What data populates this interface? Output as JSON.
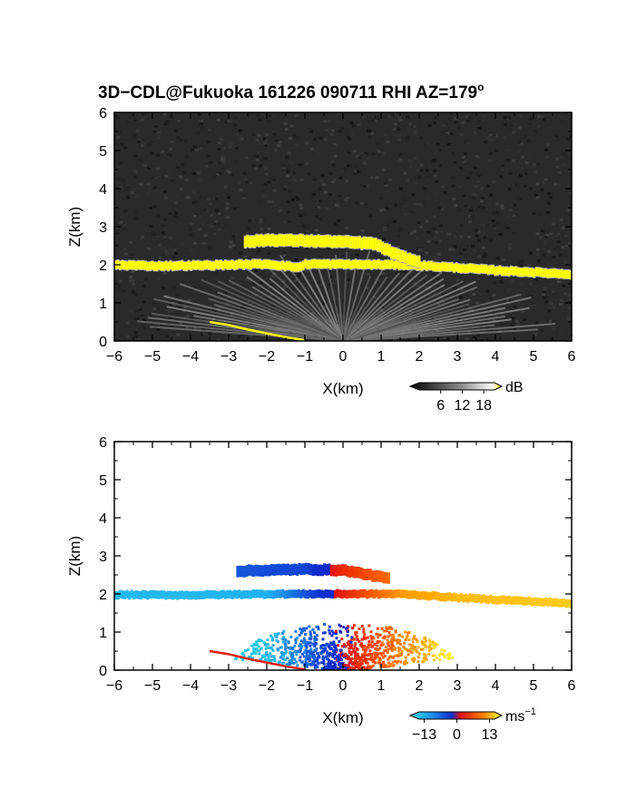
{
  "title": "3D−CDL@Fukuoka 161226 090711 RHI AZ=179",
  "title_superscript": "o",
  "colors": {
    "echo_background": "#2a2a2a",
    "echo_layer": "#ffff00",
    "velocity_negative_far": "#1fb8f0",
    "velocity_negative_near": "#1040e0",
    "velocity_positive_near": "#e02010",
    "velocity_positive_far": "#ffb000"
  },
  "chart_data": [
    {
      "type": "heatmap",
      "panel": "backscatter",
      "xlabel": "X(km)",
      "ylabel": "Z(km)",
      "xlim": [
        -6,
        6
      ],
      "ylim": [
        0,
        6
      ],
      "xticks": [
        "−6",
        "−5",
        "−4",
        "−3",
        "−2",
        "−1",
        "0",
        "1",
        "2",
        "3",
        "4",
        "5",
        "6"
      ],
      "yticks": [
        "0",
        "1",
        "2",
        "3",
        "4",
        "5",
        "6"
      ],
      "colorbar": {
        "unit": "dB",
        "ticks": [
          "6",
          "12",
          "18"
        ],
        "range": [
          0,
          21
        ]
      },
      "cloud_base_layer": [
        {
          "x": -6.0,
          "z": 2.0
        },
        {
          "x": -5.0,
          "z": 1.97
        },
        {
          "x": -4.0,
          "z": 1.98
        },
        {
          "x": -3.0,
          "z": 2.0
        },
        {
          "x": -2.0,
          "z": 2.02
        },
        {
          "x": -1.2,
          "z": 1.93
        },
        {
          "x": -1.0,
          "z": 2.02
        },
        {
          "x": 1.5,
          "z": 2.0
        },
        {
          "x": 2.0,
          "z": 1.98
        },
        {
          "x": 3.0,
          "z": 1.92
        },
        {
          "x": 4.0,
          "z": 1.85
        },
        {
          "x": 5.0,
          "z": 1.8
        },
        {
          "x": 6.0,
          "z": 1.75
        }
      ],
      "upper_layer": [
        {
          "x": -2.6,
          "z": 2.6
        },
        {
          "x": -2.0,
          "z": 2.65
        },
        {
          "x": -1.0,
          "z": 2.63
        },
        {
          "x": 0.0,
          "z": 2.6
        },
        {
          "x": 0.8,
          "z": 2.55
        },
        {
          "x": 1.4,
          "z": 2.25
        },
        {
          "x": 2.0,
          "z": 2.05
        }
      ],
      "surface_echo": [
        {
          "x": -3.5,
          "z": 0.5
        },
        {
          "x": -3.0,
          "z": 0.42
        },
        {
          "x": -2.5,
          "z": 0.3
        },
        {
          "x": -2.0,
          "z": 0.2
        },
        {
          "x": -1.5,
          "z": 0.1
        },
        {
          "x": -1.0,
          "z": 0.02
        }
      ]
    },
    {
      "type": "heatmap",
      "panel": "radial_velocity",
      "xlabel": "X(km)",
      "ylabel": "Z(km)",
      "xlim": [
        -6,
        6
      ],
      "ylim": [
        0,
        6
      ],
      "xticks": [
        "−6",
        "−5",
        "−4",
        "−3",
        "−2",
        "−1",
        "0",
        "1",
        "2",
        "3",
        "4",
        "5",
        "6"
      ],
      "yticks": [
        "0",
        "1",
        "2",
        "3",
        "4",
        "5",
        "6"
      ],
      "colorbar": {
        "unit": "ms",
        "unit_superscript": "−1",
        "ticks": [
          "−13",
          "0",
          "13"
        ],
        "range": [
          -15,
          15
        ]
      },
      "cloud_base_layer": [
        {
          "x": -6.0,
          "z": 1.98,
          "v": -10
        },
        {
          "x": -4.0,
          "z": 1.97,
          "v": -10
        },
        {
          "x": -2.0,
          "z": 2.0,
          "v": -9
        },
        {
          "x": 1.5,
          "z": 2.0,
          "v": 9
        },
        {
          "x": 3.0,
          "z": 1.9,
          "v": 11
        },
        {
          "x": 6.0,
          "z": 1.75,
          "v": 12
        }
      ],
      "upper_layer": [
        {
          "x": -2.8,
          "z": 2.6,
          "v": -4
        },
        {
          "x": -1.0,
          "z": 2.65,
          "v": -3
        },
        {
          "x": 0.0,
          "z": 2.62,
          "v": 2
        },
        {
          "x": 1.2,
          "z": 2.4,
          "v": 6
        }
      ]
    }
  ]
}
